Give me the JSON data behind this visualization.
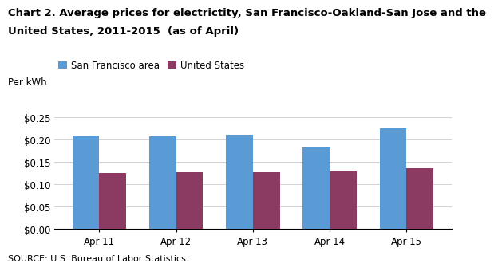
{
  "title_line1": "Chart 2. Average prices for electrictity, San Francisco-Oakland-San Jose and the",
  "title_line2": "United States, 2011-2015  (as of April)",
  "ylabel": "Per kWh",
  "source": "SOURCE: U.S. Bureau of Labor Statistics.",
  "categories": [
    "Apr-11",
    "Apr-12",
    "Apr-13",
    "Apr-14",
    "Apr-15"
  ],
  "sf_values": [
    0.21,
    0.208,
    0.211,
    0.183,
    0.225
  ],
  "us_values": [
    0.126,
    0.127,
    0.128,
    0.13,
    0.136
  ],
  "sf_color": "#5B9BD5",
  "us_color": "#8B3A62",
  "sf_label": "San Francisco area",
  "us_label": "United States",
  "ylim": [
    0,
    0.28
  ],
  "yticks": [
    0.0,
    0.05,
    0.1,
    0.15,
    0.2,
    0.25
  ],
  "background_color": "#FFFFFF",
  "title_fontsize": 9.5,
  "ylabel_fontsize": 8.5,
  "tick_fontsize": 8.5,
  "legend_fontsize": 8.5,
  "source_fontsize": 8.0
}
